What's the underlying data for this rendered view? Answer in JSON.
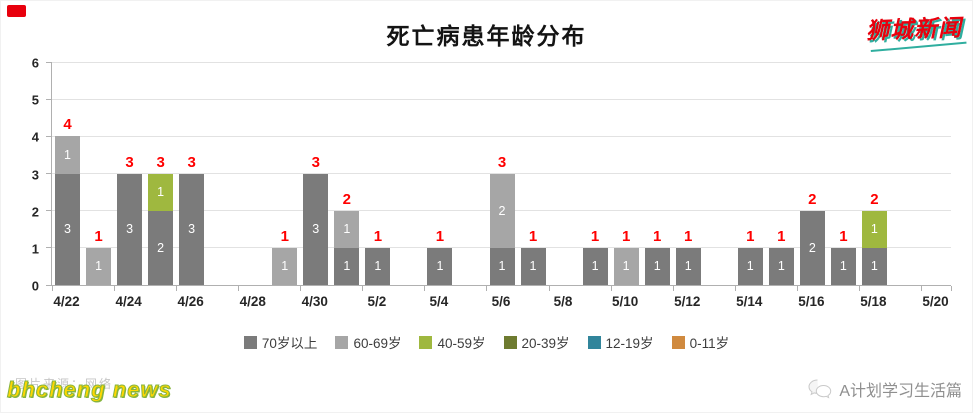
{
  "header": {
    "title": "死亡病患年龄分布",
    "logo_text": "狮城新闻"
  },
  "watermark": {
    "caption": "图片来源：网络",
    "brand": "bhcheng news"
  },
  "footer": {
    "account_name": "A计划学习生活篇"
  },
  "chart_data": {
    "type": "bar",
    "stacked": true,
    "title": "死亡病患年龄分布",
    "xlabel": "",
    "ylabel": "",
    "ylim": [
      0,
      6
    ],
    "yticks": [
      0,
      1,
      2,
      3,
      4,
      5,
      6
    ],
    "grid": true,
    "legend_position": "bottom",
    "num_days": 29,
    "x_start_date": "4/22",
    "xtick_labels": [
      "4/22",
      "4/24",
      "4/26",
      "4/28",
      "4/30",
      "5/2",
      "5/4",
      "5/6",
      "5/8",
      "5/10",
      "5/12",
      "5/14",
      "5/16",
      "5/18",
      "5/20"
    ],
    "total_label_color": "#ff0000",
    "segment_label_color": "#ffffff",
    "series_colors": {
      "70岁以上": "#7b7b7b",
      "60-69岁": "#a6a6a6",
      "40-59岁": "#9fb83f",
      "20-39岁": "#6e7b30",
      "12-19岁": "#31859b",
      "0-11岁": "#d08a3f"
    },
    "legend": [
      "70岁以上",
      "60-69岁",
      "40-59岁",
      "20-39岁",
      "12-19岁",
      "0-11岁"
    ],
    "bars": [
      {
        "date": "4/22",
        "day": 0,
        "total": 4,
        "segments": [
          {
            "series": "70岁以上",
            "value": 3
          },
          {
            "series": "60-69岁",
            "value": 1
          }
        ]
      },
      {
        "date": "4/23",
        "day": 1,
        "total": 1,
        "segments": [
          {
            "series": "60-69岁",
            "value": 1
          }
        ]
      },
      {
        "date": "4/24",
        "day": 2,
        "total": 3,
        "segments": [
          {
            "series": "70岁以上",
            "value": 3
          }
        ]
      },
      {
        "date": "4/25",
        "day": 3,
        "total": 3,
        "segments": [
          {
            "series": "70岁以上",
            "value": 2
          },
          {
            "series": "40-59岁",
            "value": 1
          }
        ]
      },
      {
        "date": "4/26",
        "day": 4,
        "total": 3,
        "segments": [
          {
            "series": "70岁以上",
            "value": 3
          }
        ]
      },
      {
        "date": "4/29",
        "day": 7,
        "total": 1,
        "segments": [
          {
            "series": "60-69岁",
            "value": 1
          }
        ]
      },
      {
        "date": "4/30",
        "day": 8,
        "total": 3,
        "segments": [
          {
            "series": "70岁以上",
            "value": 3
          }
        ]
      },
      {
        "date": "5/1",
        "day": 9,
        "total": 2,
        "segments": [
          {
            "series": "70岁以上",
            "value": 1
          },
          {
            "series": "60-69岁",
            "value": 1
          }
        ]
      },
      {
        "date": "5/2",
        "day": 10,
        "total": 1,
        "segments": [
          {
            "series": "70岁以上",
            "value": 1
          }
        ]
      },
      {
        "date": "5/4",
        "day": 12,
        "total": 1,
        "segments": [
          {
            "series": "70岁以上",
            "value": 1
          }
        ]
      },
      {
        "date": "5/6",
        "day": 14,
        "total": 3,
        "segments": [
          {
            "series": "70岁以上",
            "value": 1
          },
          {
            "series": "60-69岁",
            "value": 2
          }
        ]
      },
      {
        "date": "5/7",
        "day": 15,
        "total": 1,
        "segments": [
          {
            "series": "70岁以上",
            "value": 1
          }
        ]
      },
      {
        "date": "5/9",
        "day": 17,
        "total": 1,
        "segments": [
          {
            "series": "70岁以上",
            "value": 1
          }
        ]
      },
      {
        "date": "5/10",
        "day": 18,
        "total": 1,
        "segments": [
          {
            "series": "60-69岁",
            "value": 1
          }
        ]
      },
      {
        "date": "5/11",
        "day": 19,
        "total": 1,
        "segments": [
          {
            "series": "70岁以上",
            "value": 1
          }
        ]
      },
      {
        "date": "5/12",
        "day": 20,
        "total": 1,
        "segments": [
          {
            "series": "70岁以上",
            "value": 1
          }
        ]
      },
      {
        "date": "5/14",
        "day": 22,
        "total": 1,
        "segments": [
          {
            "series": "70岁以上",
            "value": 1
          }
        ]
      },
      {
        "date": "5/15",
        "day": 23,
        "total": 1,
        "segments": [
          {
            "series": "70岁以上",
            "value": 1
          }
        ]
      },
      {
        "date": "5/16",
        "day": 24,
        "total": 2,
        "segments": [
          {
            "series": "70岁以上",
            "value": 2
          }
        ]
      },
      {
        "date": "5/17",
        "day": 25,
        "total": 1,
        "segments": [
          {
            "series": "70岁以上",
            "value": 1
          }
        ]
      },
      {
        "date": "5/18",
        "day": 26,
        "total": 2,
        "segments": [
          {
            "series": "70岁以上",
            "value": 1
          },
          {
            "series": "40-59岁",
            "value": 1
          }
        ]
      }
    ]
  }
}
